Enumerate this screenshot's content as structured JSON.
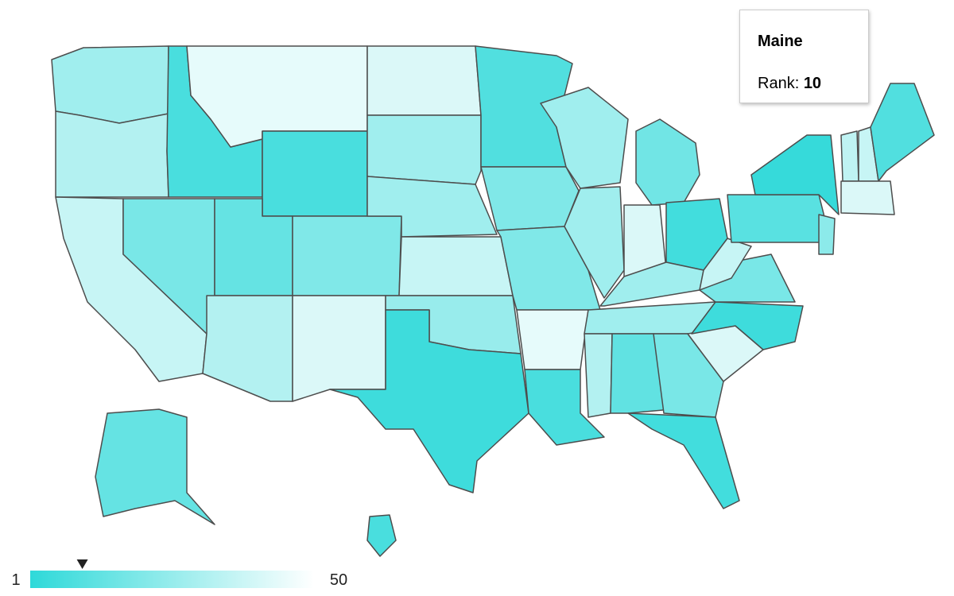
{
  "map": {
    "ranks": [
      30,
      35,
      40,
      8,
      48,
      8,
      20,
      15,
      22,
      35,
      45,
      45,
      30,
      30,
      40,
      28,
      5,
      10,
      22,
      22,
      48,
      8,
      30,
      30,
      18,
      45,
      6,
      30,
      30,
      35,
      14,
      20,
      6,
      45,
      5,
      20,
      40,
      12,
      3,
      25,
      38,
      40,
      10,
      45,
      15,
      8
    ],
    "legend": {
      "min": 1,
      "max": 50,
      "colors": [
        "#2ed9d9",
        "#ffffff"
      ]
    },
    "tooltip": {
      "title": "Maine",
      "label": "Rank:",
      "value": 10
    }
  }
}
